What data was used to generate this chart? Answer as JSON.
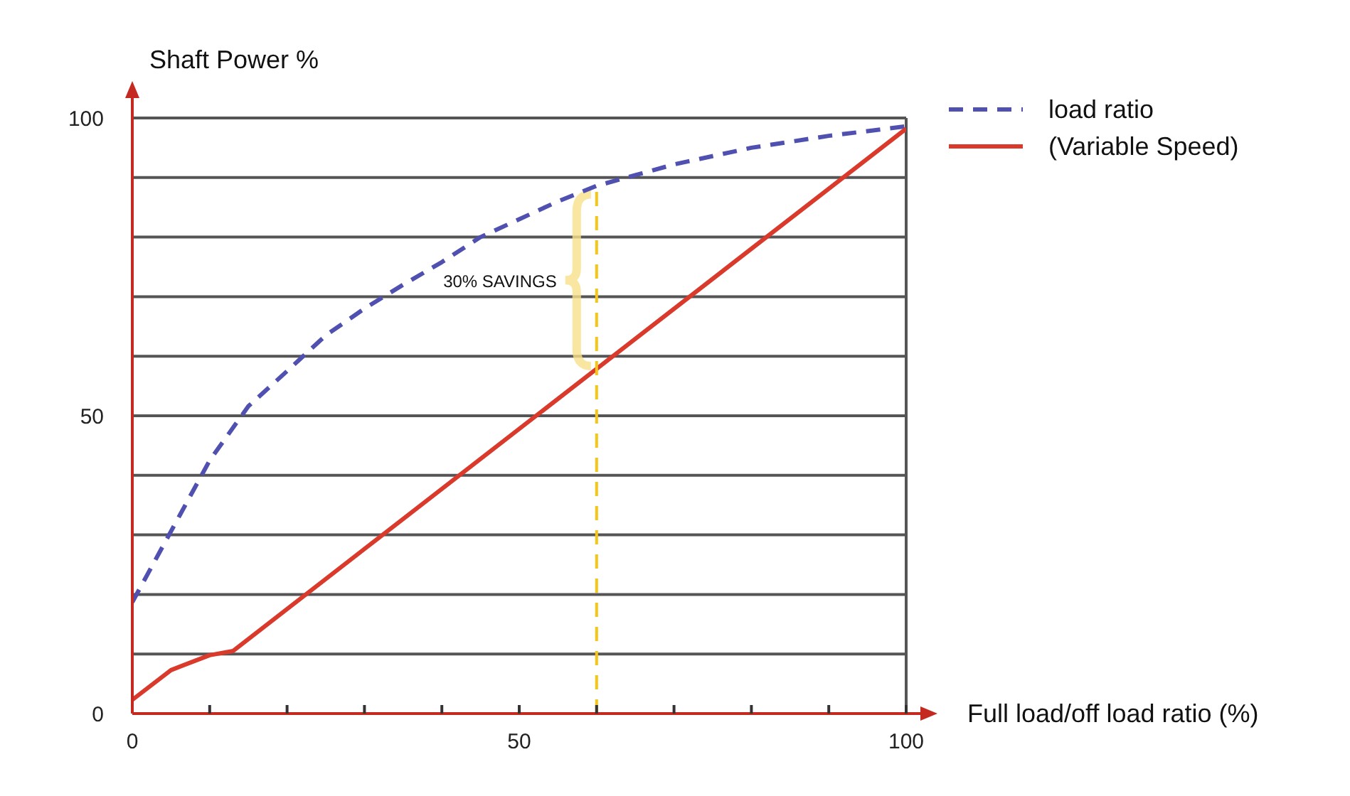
{
  "chart_data": {
    "type": "line",
    "ylabel": "Shaft Power %",
    "xlabel": "Full load/off load ratio (%)",
    "xlim": [
      0,
      100
    ],
    "ylim": [
      0,
      100
    ],
    "xticks": [
      0,
      {
        "value": 10,
        "label": null
      },
      {
        "value": 20,
        "label": null
      },
      {
        "value": 30,
        "label": null
      },
      {
        "value": 40,
        "label": null
      },
      50,
      {
        "value": 60,
        "label": null
      },
      {
        "value": 70,
        "label": null
      },
      {
        "value": 80,
        "label": null
      },
      {
        "value": 90,
        "label": null
      },
      100
    ],
    "yticks": [
      0,
      {
        "value": 10,
        "label": null
      },
      {
        "value": 20,
        "label": null
      },
      {
        "value": 30,
        "label": null
      },
      {
        "value": 40,
        "label": null
      },
      50,
      {
        "value": 60,
        "label": null
      },
      {
        "value": 70,
        "label": null
      },
      {
        "value": 80,
        "label": null
      },
      {
        "value": 90,
        "label": null
      },
      100
    ],
    "grid": "y",
    "legend": "top right",
    "marker": "none",
    "series": [
      {
        "name": "load ratio",
        "color": "#5050b0",
        "line_style": "dashed",
        "x": [
          0,
          5,
          10,
          15,
          20,
          25,
          30,
          35,
          40,
          45,
          50,
          55,
          60,
          65,
          70,
          80,
          90,
          100
        ],
        "values": [
          18.7,
          30.6,
          42.5,
          51.6,
          57.5,
          63.5,
          68,
          72,
          75.8,
          80,
          83,
          86,
          88.6,
          90.4,
          92.2,
          95,
          97,
          98.6
        ]
      },
      {
        "name": "(Variable Speed)",
        "color": "#d93a2b",
        "line_style": "solid",
        "x": [
          0,
          5,
          10,
          13,
          100
        ],
        "values": [
          2.3,
          7.3,
          9.8,
          10.5,
          98.2
        ]
      }
    ],
    "ref_lines": [
      {
        "axis": "x",
        "value": 60,
        "color": "#f5c518",
        "line_style": "dashed"
      }
    ],
    "annotations": [
      "30% SAVINGS"
    ]
  }
}
